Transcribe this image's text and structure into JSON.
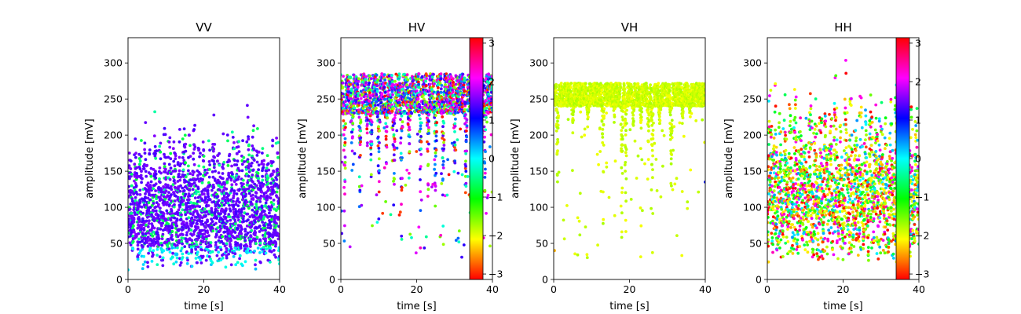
{
  "chart_data": [
    {
      "type": "scatter",
      "title": "VV",
      "xlabel": "time [s]",
      "ylabel": "amplitude [mV]",
      "xlim": [
        0,
        40
      ],
      "ylim": [
        0,
        335
      ],
      "xticks": [
        0,
        20,
        40
      ],
      "yticks": [
        0,
        50,
        100,
        150,
        200,
        250,
        300
      ],
      "colorbar": false,
      "profile": {
        "base": 12,
        "spread": 90,
        "spike_peaks": [
          168,
          160,
          150,
          170,
          140,
          175,
          150,
          165,
          170,
          155,
          150,
          193,
          150,
          168,
          150,
          160,
          145,
          175,
          160,
          150,
          155,
          185,
          165,
          150,
          198,
          190,
          160,
          150,
          145,
          160,
          162
        ],
        "dominant_phase": 1.45,
        "secondary_phase": -0.6,
        "low_amplitude_phase": 0.0
      }
    },
    {
      "type": "scatter",
      "title": "HV",
      "xlabel": "time [s]",
      "ylabel": "amplitude [mV]",
      "xlim": [
        0,
        40
      ],
      "ylim": [
        0,
        335
      ],
      "xticks": [
        0,
        20,
        40
      ],
      "yticks": [
        0,
        50,
        100,
        150,
        200,
        250,
        300
      ],
      "colorbar": true,
      "profile": {
        "base": 230,
        "top": 285,
        "dip_times": [
          1,
          3,
          5,
          7,
          8,
          10,
          12,
          14,
          16,
          18,
          21,
          23,
          25,
          27,
          30,
          33,
          35,
          37,
          38
        ],
        "dip_depths": [
          40,
          150,
          60,
          180,
          100,
          45,
          140,
          60,
          30,
          130,
          75,
          80,
          35,
          60,
          120,
          80,
          70,
          10,
          90
        ],
        "phases": [
          -1.6,
          1.3,
          1.8,
          -3.0,
          2.2,
          -0.3,
          0.6
        ]
      }
    },
    {
      "type": "scatter",
      "title": "VH",
      "xlabel": "time [s]",
      "ylabel": "amplitude [mV]",
      "xlim": [
        0,
        40
      ],
      "ylim": [
        0,
        335
      ],
      "xticks": [
        0,
        20,
        40
      ],
      "yticks": [
        0,
        50,
        100,
        150,
        200,
        250,
        300
      ],
      "colorbar": false,
      "profile": {
        "base": 240,
        "top": 272,
        "dip_times": [
          1,
          5,
          9,
          13,
          16,
          18,
          19,
          21,
          23,
          25,
          26,
          28,
          31,
          34,
          36
        ],
        "dip_depths": [
          110,
          190,
          200,
          70,
          210,
          15,
          25,
          200,
          190,
          160,
          90,
          200,
          90,
          210,
          220
        ],
        "phases": [
          -1.9
        ],
        "outliers": [
          {
            "t": 0.2,
            "amp": 40,
            "phase": -2.4
          },
          {
            "t": 40,
            "amp": 135,
            "phase": 1.0
          }
        ]
      }
    },
    {
      "type": "scatter",
      "title": "HH",
      "xlabel": "time [s]",
      "ylabel": "amplitude [mV]",
      "xlim": [
        0,
        40
      ],
      "ylim": [
        0,
        335
      ],
      "xticks": [
        0,
        20,
        40
      ],
      "yticks": [
        0,
        50,
        100,
        150,
        200,
        250,
        300
      ],
      "colorbar": true,
      "profile": {
        "base": 20,
        "spread": 130,
        "spike_peaks": [
          205,
          190,
          150,
          180,
          170,
          200,
          190,
          160,
          205,
          180,
          175,
          185,
          180,
          200,
          150,
          215,
          190,
          170,
          180,
          160,
          205,
          185,
          190,
          150,
          175,
          200,
          195,
          185,
          170,
          160
        ],
        "phases": [
          -2.3,
          -2.0,
          -1.5,
          -3.0,
          -0.8,
          2.2,
          0.2
        ]
      }
    }
  ],
  "colorbar": {
    "ticks": [
      -3,
      -2,
      -1,
      0,
      1,
      2,
      3
    ],
    "vmin": -3.14159,
    "vmax": 3.14159,
    "colormap": "hsv"
  }
}
